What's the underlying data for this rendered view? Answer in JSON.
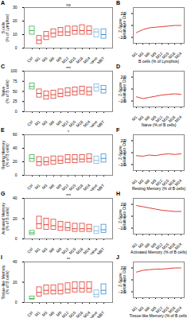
{
  "chart_data": [
    {
      "type": "box",
      "panel": "A",
      "y_label": "B cells\n(% of Lymphos)",
      "annotation": "ns",
      "categories": [
        "Ctrl",
        "M1",
        "M3",
        "M6",
        "M9",
        "M12",
        "M15",
        "M18",
        "M24",
        "CH-naive",
        "CH-MBT"
      ],
      "medians": [
        13,
        6,
        9,
        11,
        12,
        12,
        13,
        13,
        13,
        12,
        10
      ],
      "q1": [
        10,
        3,
        6,
        8,
        9,
        9,
        10,
        10,
        10,
        8,
        7
      ],
      "q3": [
        16,
        9,
        12,
        14,
        15,
        16,
        16,
        17,
        16,
        14,
        14
      ],
      "colors": [
        "#3cb44b",
        "#e03c31",
        "#e03c31",
        "#e03c31",
        "#e03c31",
        "#e03c31",
        "#e03c31",
        "#e03c31",
        "#e03c31",
        "#7fb8e0",
        "#3f8fd0"
      ],
      "ylim": [
        0,
        30
      ],
      "yticks": [
        0,
        10,
        20,
        30
      ]
    },
    {
      "type": "line",
      "panel": "B",
      "title": "B cells (% of Lymphos)",
      "y_label": "Z-Score\n(relative to Ctrl)",
      "categories": [
        "M1",
        "M3",
        "M6",
        "M9",
        "M12",
        "M15",
        "M18",
        "M24"
      ],
      "values": [
        -1.2,
        -0.7,
        -0.4,
        -0.3,
        -0.2,
        -0.1,
        0,
        0
      ],
      "color": "#e03c31",
      "ylim": [
        -3,
        3
      ],
      "yticks": [
        -2,
        0,
        2
      ]
    },
    {
      "type": "box",
      "panel": "C",
      "y_label": "Naive\n(% of B cells)",
      "annotation": "***",
      "categories": [
        "Ctrl",
        "M1",
        "M3",
        "M6",
        "M9",
        "M12",
        "M15",
        "M18",
        "M24",
        "CH-naive",
        "CH-MBT"
      ],
      "medians": [
        62,
        45,
        40,
        42,
        45,
        48,
        50,
        52,
        50,
        60,
        55
      ],
      "q1": [
        55,
        35,
        30,
        32,
        36,
        38,
        40,
        42,
        40,
        50,
        45
      ],
      "q3": [
        70,
        55,
        50,
        52,
        55,
        58,
        60,
        62,
        60,
        68,
        64
      ],
      "colors": [
        "#3cb44b",
        "#e03c31",
        "#e03c31",
        "#e03c31",
        "#e03c31",
        "#e03c31",
        "#e03c31",
        "#e03c31",
        "#e03c31",
        "#7fb8e0",
        "#3f8fd0"
      ],
      "ylim": [
        0,
        100
      ],
      "yticks": [
        0,
        25,
        50,
        75,
        100
      ]
    },
    {
      "type": "line",
      "panel": "D",
      "title": "Naive (% of B cells)",
      "y_label": "Z-Score\n(relative to Ctrl)",
      "categories": [
        "M1",
        "M3",
        "M6",
        "M9",
        "M12",
        "M15",
        "M18",
        "M24"
      ],
      "values": [
        -1.3,
        -1.6,
        -1.4,
        -1.2,
        -1.0,
        -0.9,
        -0.8,
        -0.9
      ],
      "color": "#e03c31",
      "ylim": [
        -3,
        3
      ],
      "yticks": [
        -2,
        0,
        2
      ]
    },
    {
      "type": "box",
      "panel": "E",
      "y_label": "Resting Memory\n(% of B cells)",
      "annotation": "*",
      "categories": [
        "Ctrl",
        "M1",
        "M3",
        "M6",
        "M9",
        "M12",
        "M15",
        "M18",
        "M24",
        "CH-naive",
        "CH-MBT"
      ],
      "medians": [
        25,
        20,
        20,
        22,
        22,
        24,
        24,
        24,
        25,
        22,
        25
      ],
      "q1": [
        20,
        14,
        15,
        16,
        17,
        18,
        18,
        19,
        19,
        17,
        19
      ],
      "q3": [
        30,
        27,
        26,
        28,
        28,
        30,
        30,
        30,
        31,
        28,
        31
      ],
      "colors": [
        "#3cb44b",
        "#e03c31",
        "#e03c31",
        "#e03c31",
        "#e03c31",
        "#e03c31",
        "#e03c31",
        "#e03c31",
        "#e03c31",
        "#7fb8e0",
        "#3f8fd0"
      ],
      "ylim": [
        0,
        60
      ],
      "yticks": [
        0,
        20,
        40,
        60
      ]
    },
    {
      "type": "line",
      "panel": "F",
      "title": "Resting Memory (% of B cells)",
      "y_label": "Z-Score\n(relative to Ctrl)",
      "categories": [
        "M1",
        "M3",
        "M6",
        "M9",
        "M12",
        "M15",
        "M18",
        "M24"
      ],
      "values": [
        -0.5,
        -0.6,
        -0.4,
        -0.5,
        -0.3,
        -0.2,
        -0.3,
        -0.2
      ],
      "color": "#e03c31",
      "ylim": [
        -3,
        3
      ],
      "yticks": [
        -2,
        0,
        2
      ]
    },
    {
      "type": "box",
      "panel": "G",
      "y_label": "Activated Memory\n(% of B cells)",
      "annotation": "***",
      "categories": [
        "Ctrl",
        "M1",
        "M3",
        "M6",
        "M9",
        "M12",
        "M15",
        "M18",
        "M24",
        "CH-naive",
        "CH-MBT"
      ],
      "medians": [
        6,
        15,
        14,
        13,
        12,
        11,
        10,
        10,
        10,
        8,
        9
      ],
      "q1": [
        4,
        10,
        9,
        9,
        8,
        8,
        7,
        7,
        7,
        5,
        6
      ],
      "q3": [
        8,
        22,
        20,
        19,
        17,
        16,
        15,
        15,
        14,
        12,
        14
      ],
      "colors": [
        "#3cb44b",
        "#e03c31",
        "#e03c31",
        "#e03c31",
        "#e03c31",
        "#e03c31",
        "#e03c31",
        "#e03c31",
        "#e03c31",
        "#7fb8e0",
        "#3f8fd0"
      ],
      "ylim": [
        0,
        40
      ],
      "yticks": [
        0,
        20,
        40
      ]
    },
    {
      "type": "line",
      "panel": "H",
      "title": "Activated Memory (% of B cells)",
      "y_label": "Z-Score\n(relative to Ctrl)",
      "categories": [
        "M1",
        "M3",
        "M6",
        "M9",
        "M12",
        "M15",
        "M18",
        "M24"
      ],
      "values": [
        1.8,
        1.6,
        1.4,
        1.2,
        1.0,
        0.9,
        0.8,
        0.8
      ],
      "color": "#e03c31",
      "ylim": [
        -3,
        3
      ],
      "yticks": [
        -2,
        0,
        2
      ]
    },
    {
      "type": "box",
      "panel": "I",
      "y_label": "Tissue-like Memory\n(% of B cells)",
      "annotation": "**",
      "categories": [
        "Ctrl",
        "M1",
        "M3",
        "M6",
        "M9",
        "M12",
        "M15",
        "M18",
        "M24",
        "CH-naive",
        "CH-MBT"
      ],
      "medians": [
        4,
        10,
        12,
        12,
        12,
        13,
        14,
        14,
        14,
        8,
        12
      ],
      "q1": [
        3,
        6,
        8,
        8,
        8,
        9,
        10,
        10,
        10,
        5,
        8
      ],
      "q3": [
        6,
        15,
        17,
        17,
        18,
        19,
        20,
        20,
        20,
        12,
        18
      ],
      "colors": [
        "#3cb44b",
        "#e03c31",
        "#e03c31",
        "#e03c31",
        "#e03c31",
        "#e03c31",
        "#e03c31",
        "#e03c31",
        "#e03c31",
        "#7fb8e0",
        "#3f8fd0"
      ],
      "ylim": [
        0,
        40
      ],
      "yticks": [
        0,
        20,
        40
      ]
    },
    {
      "type": "line",
      "panel": "J",
      "title": "Tissue-like Memory (% of B cells)",
      "y_label": "Z-Score\n(relative to Ctrl)",
      "categories": [
        "M1",
        "M3",
        "M6",
        "M9",
        "M12",
        "M15",
        "M18",
        "M24"
      ],
      "values": [
        1.3,
        1.6,
        1.7,
        1.8,
        1.8,
        1.9,
        2.0,
        2.0
      ],
      "color": "#e03c31",
      "ylim": [
        -3,
        3
      ],
      "yticks": [
        -2,
        0,
        2
      ]
    }
  ]
}
